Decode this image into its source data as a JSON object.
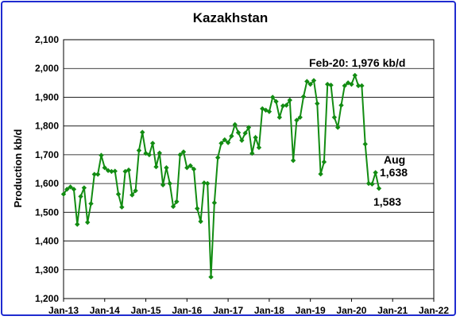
{
  "chart_data": {
    "type": "line",
    "title": "Kazakhstan",
    "xlabel": "",
    "ylabel": "Production kb/d",
    "ylim": [
      1200,
      2100
    ],
    "yticks": [
      "1,200",
      "1,300",
      "1,400",
      "1,500",
      "1,600",
      "1,700",
      "1,800",
      "1,900",
      "2,000",
      "2,100"
    ],
    "xticks": [
      "Jan-13",
      "Jan-14",
      "Jan-15",
      "Jan-16",
      "Jan-17",
      "Jan-18",
      "Jan-19",
      "Jan-20",
      "Jan-21",
      "Jan-22"
    ],
    "x_start": "Jan-13",
    "x_end": "Jan-22",
    "grid": true,
    "series": [
      {
        "color": "#128c12",
        "values": [
          1563,
          1580,
          1588,
          1580,
          1458,
          1555,
          1585,
          1465,
          1530,
          1632,
          1632,
          1698,
          1655,
          1645,
          1642,
          1643,
          1563,
          1518,
          1642,
          1647,
          1560,
          1575,
          1715,
          1778,
          1705,
          1700,
          1740,
          1658,
          1706,
          1595,
          1655,
          1600,
          1520,
          1537,
          1700,
          1710,
          1655,
          1662,
          1650,
          1513,
          1468,
          1602,
          1600,
          1275,
          1533,
          1690,
          1740,
          1752,
          1742,
          1765,
          1805,
          1777,
          1750,
          1775,
          1795,
          1705,
          1760,
          1725,
          1860,
          1855,
          1850,
          1900,
          1885,
          1830,
          1870,
          1872,
          1890,
          1680,
          1820,
          1830,
          1902,
          1955,
          1945,
          1958,
          1878,
          1633,
          1675,
          1945,
          1942,
          1830,
          1795,
          1872,
          1940,
          1950,
          1945,
          1976,
          1940,
          1940,
          1737,
          1600,
          1598,
          1638,
          1583
        ]
      }
    ],
    "annotations": {
      "peak": "Feb-20: 1,976 kb/d",
      "last_month": "Aug",
      "last_value": "1,638",
      "low_value": "1,583"
    }
  }
}
